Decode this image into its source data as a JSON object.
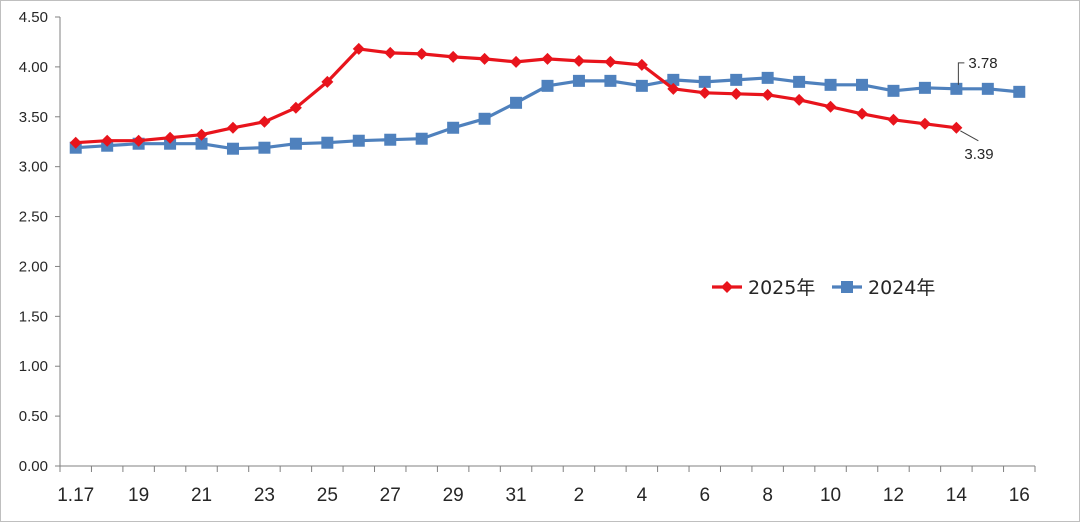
{
  "chart_data": {
    "type": "line",
    "title": "",
    "xlabel": "",
    "ylabel": "",
    "ylim": [
      0,
      4.5
    ],
    "yticks": [
      "0.00",
      "0.50",
      "1.00",
      "1.50",
      "2.00",
      "2.50",
      "3.00",
      "3.50",
      "4.00",
      "4.50"
    ],
    "xtick_labels": [
      "1.17",
      "19",
      "21",
      "23",
      "25",
      "27",
      "29",
      "31",
      "2",
      "4",
      "6",
      "8",
      "10",
      "12",
      "14",
      "16"
    ],
    "grid": false,
    "legend_position": "center-right",
    "series": [
      {
        "name": "2025年",
        "color": "#e8141c",
        "marker": "diamond",
        "values": [
          3.24,
          3.26,
          3.26,
          3.29,
          3.32,
          3.39,
          3.45,
          3.59,
          3.85,
          4.18,
          4.14,
          4.13,
          4.1,
          4.08,
          4.05,
          4.08,
          4.06,
          4.05,
          4.02,
          3.78,
          3.74,
          3.73,
          3.72,
          3.67,
          3.6,
          3.53,
          3.47,
          3.43,
          3.39
        ]
      },
      {
        "name": "2024年",
        "color": "#4f81bd",
        "marker": "square",
        "values": [
          3.19,
          3.21,
          3.23,
          3.23,
          3.23,
          3.18,
          3.19,
          3.23,
          3.24,
          3.26,
          3.27,
          3.28,
          3.39,
          3.48,
          3.64,
          3.81,
          3.86,
          3.86,
          3.81,
          3.87,
          3.85,
          3.87,
          3.89,
          3.85,
          3.82,
          3.82,
          3.76,
          3.79,
          3.78,
          3.78,
          3.75
        ]
      }
    ],
    "annotations": [
      {
        "series": 1,
        "index": 28,
        "text": "3.78"
      },
      {
        "series": 0,
        "index": 28,
        "text": "3.39"
      }
    ]
  }
}
